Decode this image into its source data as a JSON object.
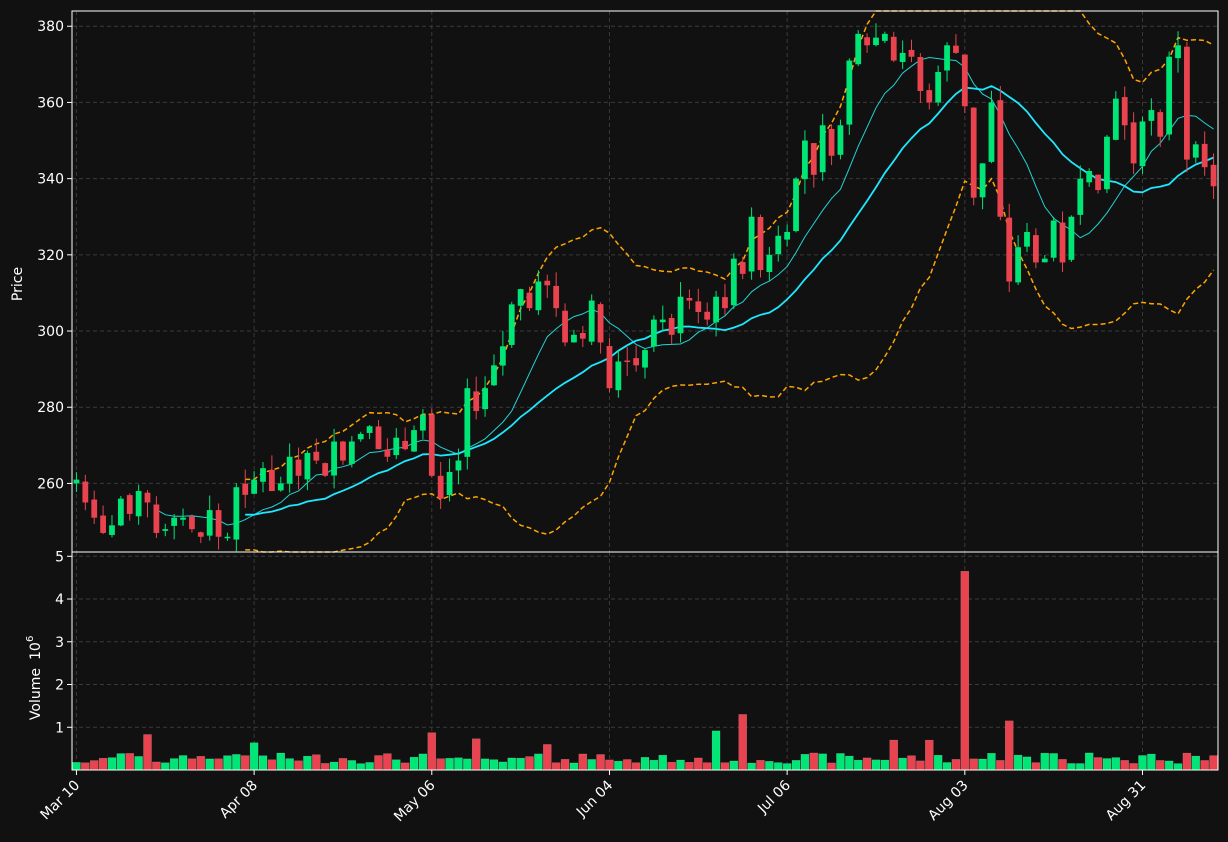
{
  "chart_data": {
    "type": "candlestick",
    "background": "#111111",
    "colors": {
      "up": "#00e676",
      "down": "#e8434e",
      "ma_fast": "#22d3d3",
      "ma_slow": "#1ee8ff",
      "bands": "#ffa500",
      "grid": "#3a3a3a",
      "axis": "#ffffff"
    },
    "price_axis": {
      "label": "Price",
      "ylim": [
        242,
        384
      ],
      "ticks": [
        260,
        280,
        300,
        320,
        340,
        360,
        380
      ]
    },
    "volume_axis": {
      "label": "Volume",
      "unit_exponent": "6",
      "ylim": [
        0,
        5.1
      ],
      "ticks": [
        1,
        2,
        3,
        4,
        5
      ]
    },
    "x_ticks": [
      {
        "index": 0,
        "label": "Mar 10"
      },
      {
        "index": 20,
        "label": "Apr 08"
      },
      {
        "index": 40,
        "label": "May 06"
      },
      {
        "index": 60,
        "label": "Jun 04"
      },
      {
        "index": 80,
        "label": "Jul 06"
      },
      {
        "index": 100,
        "label": "Aug 03"
      },
      {
        "index": 120,
        "label": "Aug 31"
      }
    ],
    "grid": true,
    "close": [
      261,
      255,
      251,
      247,
      249,
      256,
      252,
      258,
      255,
      247,
      248,
      251,
      251,
      248,
      246,
      253,
      246,
      246,
      259,
      257,
      261,
      264,
      258,
      260,
      267,
      262,
      268,
      266,
      262,
      271,
      266,
      271,
      273,
      275,
      269,
      267,
      272,
      269,
      274,
      278,
      262,
      256,
      263,
      266,
      285,
      279,
      285,
      291,
      296,
      307,
      311,
      306,
      313,
      312,
      306,
      297,
      299,
      298,
      308,
      297,
      285,
      292,
      292,
      291,
      295,
      303,
      303,
      299,
      309,
      308,
      305,
      303,
      309,
      306,
      319,
      315,
      330,
      316,
      320,
      325,
      326,
      340,
      350,
      341,
      354,
      346,
      354,
      371,
      378,
      375,
      377,
      378,
      371,
      373,
      372,
      363,
      360,
      368,
      375,
      373,
      359,
      335,
      344,
      360,
      330,
      313,
      322,
      326,
      318,
      319,
      329,
      318,
      330,
      340,
      342,
      337,
      351,
      361,
      354,
      344,
      355,
      358,
      351,
      372,
      375,
      345,
      349,
      343,
      338
    ]
  }
}
